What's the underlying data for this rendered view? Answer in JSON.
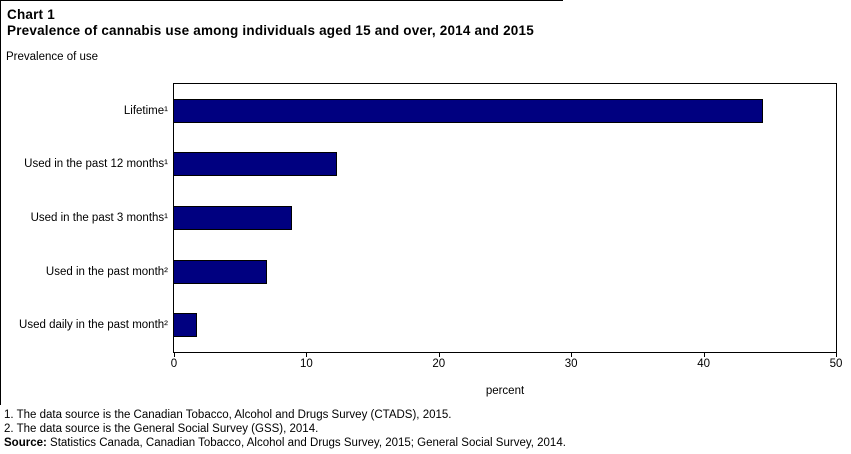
{
  "title": {
    "line1": "Chart 1",
    "line2": "Prevalence of cannabis use among individuals aged 15 and over, 2014 and 2015"
  },
  "y_axis_caption": "Prevalence of use",
  "x_axis_caption": "percent",
  "footnotes": [
    "1. The data source is the Canadian Tobacco, Alcohol and Drugs Survey (CTADS), 2015.",
    "2. The data source is the General Social Survey (GSS), 2014."
  ],
  "source": {
    "label": "Source:",
    "text": " Statistics Canada, Canadian Tobacco, Alcohol and Drugs Survey, 2015; General Social Survey, 2014."
  },
  "colors": {
    "bar_fill": "#000080",
    "bar_border": "#000000",
    "axis": "#000000"
  },
  "chart_data": {
    "type": "bar",
    "orientation": "horizontal",
    "title": "Chart 1 — Prevalence of cannabis use among individuals aged 15 and over, 2014 and 2015",
    "categories": [
      "Lifetime¹",
      "Used in the past 12 months¹",
      "Used in the past 3 months¹",
      "Used in the past month²",
      "Used daily in the past month²"
    ],
    "values": [
      44.5,
      12.3,
      8.9,
      7.0,
      1.7
    ],
    "xlabel": "percent",
    "ylabel": "Prevalence of use",
    "xlim": [
      0,
      50
    ],
    "xticks": [
      0,
      10,
      20,
      30,
      40,
      50
    ],
    "grid": false,
    "legend": null
  }
}
